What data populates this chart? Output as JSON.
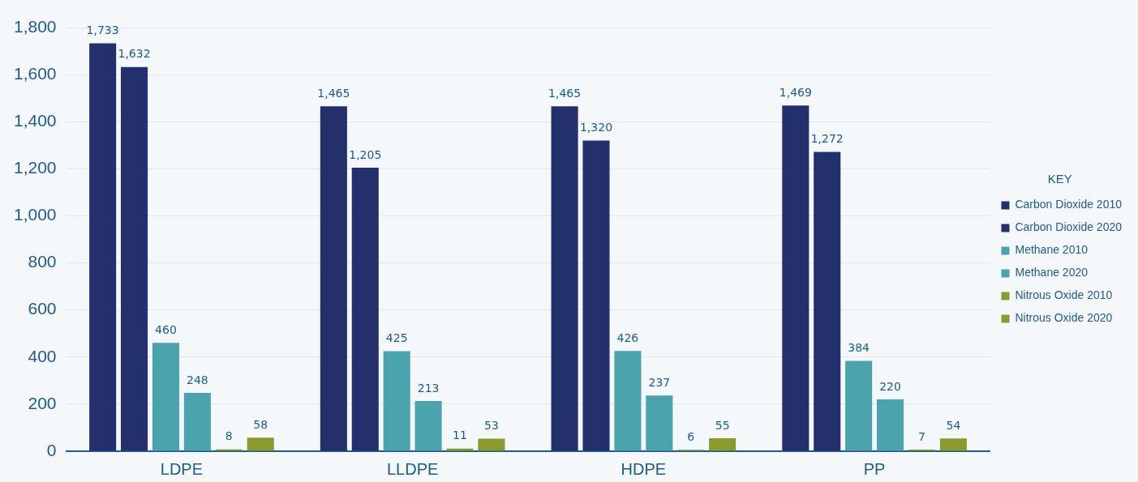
{
  "chart_data": {
    "type": "bar",
    "categories": [
      "LDPE",
      "LLDPE",
      "HDPE",
      "PP"
    ],
    "series": [
      {
        "name": "Carbon Dioxide 2010",
        "color": "#23306b",
        "values": [
          1733,
          1465,
          1465,
          1469
        ],
        "value_labels": [
          "1,733",
          "1,465",
          "1,465",
          "1,469"
        ]
      },
      {
        "name": "Carbon Dioxide 2020",
        "color": "#23306b",
        "values": [
          1632,
          1205,
          1320,
          1272
        ],
        "value_labels": [
          "1,632",
          "1,205",
          "1,320",
          "1,272"
        ]
      },
      {
        "name": "Methane 2010",
        "color": "#4ba3ae",
        "values": [
          460,
          425,
          426,
          384
        ],
        "value_labels": [
          "460",
          "425",
          "426",
          "384"
        ]
      },
      {
        "name": "Methane 2020",
        "color": "#4ba3ae",
        "values": [
          248,
          213,
          237,
          220
        ],
        "value_labels": [
          "248",
          "213",
          "237",
          "220"
        ]
      },
      {
        "name": "Nitrous Oxide 2010",
        "color": "#8a9a2c",
        "values": [
          8,
          11,
          6,
          7
        ],
        "value_labels": [
          "8",
          "11",
          "6",
          "7"
        ]
      },
      {
        "name": "Nitrous Oxide 2020",
        "color": "#8a9a2c",
        "values": [
          58,
          53,
          55,
          54
        ],
        "value_labels": [
          "58",
          "53",
          "55",
          "54"
        ]
      }
    ],
    "legend_title": "KEY",
    "legend": "right",
    "ylim": [
      0,
      1800
    ],
    "yticks": [
      0,
      200,
      400,
      600,
      800,
      {
        "value": 1000,
        "label": "1,000"
      },
      {
        "value": 1200,
        "label": "1,200"
      },
      {
        "value": 1400,
        "label": "1,400"
      },
      {
        "value": 1600,
        "label": "1,600"
      },
      {
        "value": 1800,
        "label": "1,800"
      }
    ],
    "grid": "y"
  }
}
